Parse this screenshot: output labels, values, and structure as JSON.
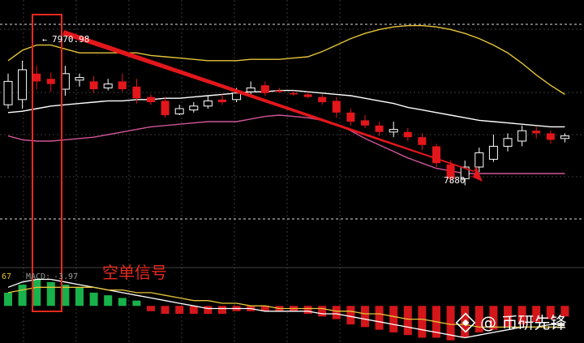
{
  "chart_data": {
    "type": "candlestick",
    "price_range": [
      7820,
      8010
    ],
    "macd_range": [
      -14,
      12
    ],
    "labels": {
      "high_price": "7970.98",
      "low_price": "7880",
      "macd_fragment": "67",
      "macd_label": "MACD:",
      "macd_value": "-3.97",
      "signal_annotation": "空单信号",
      "watermark": "@ 币研先锋"
    },
    "candles": [
      {
        "o": 7938,
        "h": 7962,
        "l": 7935,
        "c": 7956
      },
      {
        "o": 7942,
        "h": 7972,
        "l": 7935,
        "c": 7965
      },
      {
        "o": 7962,
        "h": 7968,
        "l": 7950,
        "c": 7956
      },
      {
        "o": 7958,
        "h": 7963,
        "l": 7948,
        "c": 7954
      },
      {
        "o": 7950,
        "h": 7968,
        "l": 7945,
        "c": 7962
      },
      {
        "o": 7957,
        "h": 7962,
        "l": 7952,
        "c": 7959
      },
      {
        "o": 7956,
        "h": 7960,
        "l": 7947,
        "c": 7950
      },
      {
        "o": 7951,
        "h": 7958,
        "l": 7949,
        "c": 7954
      },
      {
        "o": 7956,
        "h": 7962,
        "l": 7948,
        "c": 7950
      },
      {
        "o": 7952,
        "h": 7958,
        "l": 7939,
        "c": 7943
      },
      {
        "o": 7944,
        "h": 7946,
        "l": 7938,
        "c": 7940
      },
      {
        "o": 7941,
        "h": 7944,
        "l": 7928,
        "c": 7930
      },
      {
        "o": 7931,
        "h": 7938,
        "l": 7930,
        "c": 7935
      },
      {
        "o": 7934,
        "h": 7940,
        "l": 7932,
        "c": 7937
      },
      {
        "o": 7937,
        "h": 7945,
        "l": 7935,
        "c": 7941
      },
      {
        "o": 7942,
        "h": 7946,
        "l": 7938,
        "c": 7940
      },
      {
        "o": 7942,
        "h": 7951,
        "l": 7940,
        "c": 7947
      },
      {
        "o": 7948,
        "h": 7956,
        "l": 7945,
        "c": 7951
      },
      {
        "o": 7953,
        "h": 7956,
        "l": 7945,
        "c": 7947
      },
      {
        "o": 7949,
        "h": 7951,
        "l": 7947,
        "c": 7948
      },
      {
        "o": 7947,
        "h": 7949,
        "l": 7945,
        "c": 7946
      },
      {
        "o": 7946,
        "h": 7948,
        "l": 7943,
        "c": 7944
      },
      {
        "o": 7944,
        "h": 7946,
        "l": 7938,
        "c": 7940
      },
      {
        "o": 7941,
        "h": 7944,
        "l": 7928,
        "c": 7932
      },
      {
        "o": 7932,
        "h": 7935,
        "l": 7922,
        "c": 7925
      },
      {
        "o": 7926,
        "h": 7930,
        "l": 7920,
        "c": 7922
      },
      {
        "o": 7922,
        "h": 7925,
        "l": 7914,
        "c": 7917
      },
      {
        "o": 7917,
        "h": 7925,
        "l": 7913,
        "c": 7919
      },
      {
        "o": 7917,
        "h": 7920,
        "l": 7910,
        "c": 7913
      },
      {
        "o": 7913,
        "h": 7916,
        "l": 7903,
        "c": 7907
      },
      {
        "o": 7906,
        "h": 7908,
        "l": 7890,
        "c": 7893
      },
      {
        "o": 7892,
        "h": 7895,
        "l": 7878,
        "c": 7881
      },
      {
        "o": 7881,
        "h": 7895,
        "l": 7876,
        "c": 7890
      },
      {
        "o": 7890,
        "h": 7905,
        "l": 7886,
        "c": 7901
      },
      {
        "o": 7896,
        "h": 7915,
        "l": 7894,
        "c": 7906
      },
      {
        "o": 7906,
        "h": 7916,
        "l": 7902,
        "c": 7912
      },
      {
        "o": 7910,
        "h": 7922,
        "l": 7906,
        "c": 7918
      },
      {
        "o": 7918,
        "h": 7921,
        "l": 7912,
        "c": 7916
      },
      {
        "o": 7916,
        "h": 7918,
        "l": 7908,
        "c": 7911
      },
      {
        "o": 7912,
        "h": 7916,
        "l": 7909,
        "c": 7914
      }
    ],
    "bollinger_upper": [
      7972,
      7980,
      7984,
      7984,
      7981,
      7978,
      7978,
      7978,
      7978,
      7978,
      7976,
      7975,
      7974,
      7973,
      7972,
      7972,
      7972,
      7973,
      7973,
      7973,
      7974,
      7975,
      7979,
      7984,
      7989,
      7993,
      7996,
      7998,
      7999,
      7999,
      7998,
      7996,
      7993,
      7989,
      7984,
      7978,
      7970,
      7961,
      7953,
      7946
    ],
    "bollinger_middle": [
      7932,
      7933,
      7935,
      7937,
      7938,
      7939,
      7940,
      7941,
      7941,
      7942,
      7942,
      7943,
      7943,
      7944,
      7945,
      7946,
      7947,
      7948,
      7948,
      7949,
      7949,
      7948,
      7947,
      7946,
      7945,
      7943,
      7941,
      7939,
      7936,
      7934,
      7932,
      7930,
      7928,
      7926,
      7925,
      7924,
      7923,
      7922,
      7921,
      7921
    ],
    "bollinger_lower": [
      7914,
      7911,
      7910,
      7910,
      7911,
      7912,
      7913,
      7915,
      7917,
      7919,
      7921,
      7922,
      7923,
      7924,
      7925,
      7925,
      7925,
      7927,
      7929,
      7930,
      7929,
      7928,
      7926,
      7923,
      7918,
      7912,
      7907,
      7902,
      7897,
      7893,
      7889,
      7887,
      7885,
      7885,
      7885,
      7885,
      7885,
      7885,
      7885,
      7885
    ],
    "macd_histogram": [
      5,
      8,
      10,
      9,
      8,
      7,
      5,
      4,
      3,
      2,
      -2,
      -3,
      -3,
      -3,
      -3,
      -3,
      -2,
      -2,
      -2,
      -2,
      -2,
      -3,
      -4,
      -5,
      -7,
      -8,
      -9,
      -10,
      -11,
      -12,
      -12,
      -13,
      -12,
      -10,
      -9,
      -8,
      -7,
      -6,
      -5,
      -4
    ],
    "dif_line": [
      7,
      9,
      10,
      10,
      9,
      8,
      7,
      6,
      5,
      4,
      3,
      2,
      1,
      0,
      -1,
      -1,
      -1,
      -1,
      -2,
      -2,
      -2,
      -2,
      -3,
      -3,
      -4,
      -5,
      -6,
      -7,
      -8,
      -9,
      -10,
      -11,
      -12,
      -11,
      -10,
      -9,
      -8,
      -8,
      -7,
      -7
    ],
    "dea_line": [
      5,
      6,
      7,
      7,
      7,
      7,
      7,
      6,
      6,
      5,
      5,
      4,
      3,
      2,
      2,
      1,
      1,
      0,
      0,
      -1,
      -1,
      -1,
      -1,
      -2,
      -2,
      -3,
      -3,
      -4,
      -5,
      -5,
      -6,
      -7,
      -7,
      -8,
      -8,
      -8,
      -8,
      -8,
      -8,
      -8
    ]
  },
  "colors": {
    "background": "#000000",
    "grid": "#6a6a6a",
    "bull": "#ffffff",
    "bear": "#e3171b",
    "macd_positive": "#18b14a",
    "macd_negative": "#d3161a",
    "boll_upper": "#e6c53a",
    "boll_middle": "#ffffff",
    "boll_lower": "#d0559a",
    "highlight": "#e8291f",
    "arrow": "#e3171b",
    "annotation": "#e8291f",
    "macd_text": "#9a9a9a",
    "macd_fragment": "#e0c030",
    "watermark": "#ffffff"
  }
}
